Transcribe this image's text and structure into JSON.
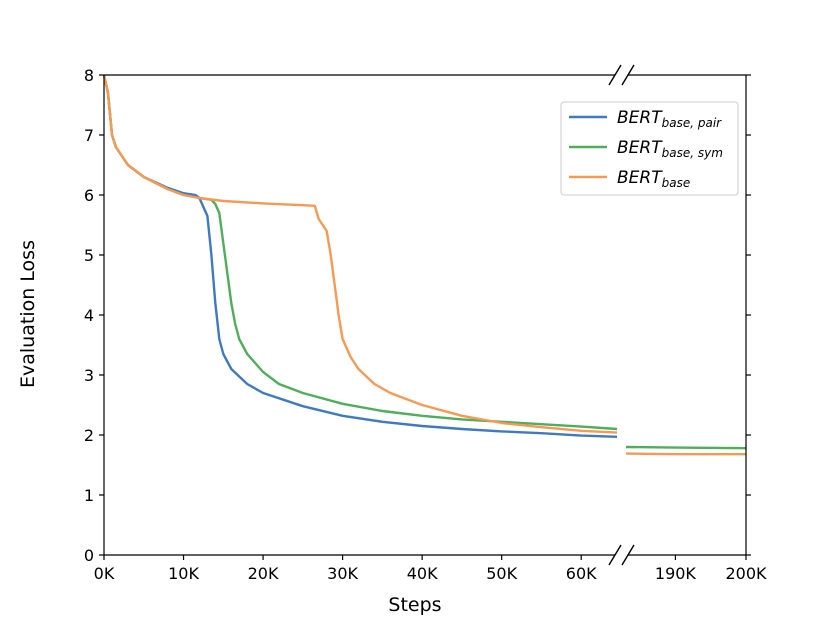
{
  "chart_data": {
    "type": "line",
    "title": "",
    "xlabel": "Steps",
    "ylabel": "Evaluation Loss",
    "ylim": [
      0,
      8
    ],
    "yticks": [
      "0",
      "1",
      "2",
      "3",
      "4",
      "5",
      "6",
      "7",
      "8"
    ],
    "x_axis_broken": true,
    "x_segments": [
      {
        "range": [
          0,
          64500
        ],
        "ticks": [
          0,
          10000,
          20000,
          30000,
          40000,
          50000,
          60000
        ],
        "tick_labels": [
          "0K",
          "10K",
          "20K",
          "30K",
          "40K",
          "50K",
          "60K"
        ]
      },
      {
        "range": [
          183000,
          200000
        ],
        "ticks": [
          190000,
          200000
        ],
        "tick_labels": [
          "190K",
          "200K"
        ]
      }
    ],
    "legend_position": "upper-right",
    "series": [
      {
        "name": "BERT",
        "subscript": "base, pair",
        "color": "#3f7abf",
        "points": [
          [
            0,
            8
          ],
          [
            500,
            7.7
          ],
          [
            1000,
            7.0
          ],
          [
            1500,
            6.8
          ],
          [
            3000,
            6.5
          ],
          [
            5000,
            6.3
          ],
          [
            8000,
            6.12
          ],
          [
            10000,
            6.03
          ],
          [
            11500,
            6.0
          ],
          [
            12000,
            5.95
          ],
          [
            12500,
            5.8
          ],
          [
            13000,
            5.65
          ],
          [
            13500,
            5.0
          ],
          [
            14000,
            4.2
          ],
          [
            14500,
            3.6
          ],
          [
            15000,
            3.35
          ],
          [
            16000,
            3.1
          ],
          [
            18000,
            2.85
          ],
          [
            20000,
            2.7
          ],
          [
            25000,
            2.48
          ],
          [
            30000,
            2.32
          ],
          [
            35000,
            2.22
          ],
          [
            40000,
            2.15
          ],
          [
            45000,
            2.1
          ],
          [
            50000,
            2.06
          ],
          [
            55000,
            2.03
          ],
          [
            60000,
            1.99
          ],
          [
            64500,
            1.97
          ]
        ],
        "tail_points": [],
        "tail_label_value": null
      },
      {
        "name": "BERT",
        "subscript": "base, sym",
        "color": "#4fad5b",
        "points": [
          [
            0,
            8
          ],
          [
            500,
            7.7
          ],
          [
            1000,
            7.0
          ],
          [
            1500,
            6.8
          ],
          [
            3000,
            6.5
          ],
          [
            5000,
            6.3
          ],
          [
            8000,
            6.1
          ],
          [
            10000,
            6.0
          ],
          [
            12000,
            5.95
          ],
          [
            13500,
            5.92
          ],
          [
            14000,
            5.85
          ],
          [
            14500,
            5.7
          ],
          [
            15000,
            5.2
          ],
          [
            15500,
            4.7
          ],
          [
            16000,
            4.2
          ],
          [
            16500,
            3.85
          ],
          [
            17000,
            3.6
          ],
          [
            18000,
            3.35
          ],
          [
            20000,
            3.05
          ],
          [
            22000,
            2.85
          ],
          [
            25000,
            2.7
          ],
          [
            30000,
            2.52
          ],
          [
            35000,
            2.4
          ],
          [
            40000,
            2.32
          ],
          [
            45000,
            2.26
          ],
          [
            50000,
            2.22
          ],
          [
            55000,
            2.18
          ],
          [
            60000,
            2.14
          ],
          [
            64500,
            2.1
          ]
        ],
        "tail_points": [
          [
            183000,
            1.8
          ],
          [
            190000,
            1.79
          ],
          [
            200000,
            1.78
          ]
        ]
      },
      {
        "name": "BERT",
        "subscript": "base",
        "color": "#f59a55",
        "points": [
          [
            0,
            8
          ],
          [
            500,
            7.7
          ],
          [
            1000,
            7.0
          ],
          [
            1500,
            6.8
          ],
          [
            3000,
            6.5
          ],
          [
            5000,
            6.3
          ],
          [
            8000,
            6.1
          ],
          [
            10000,
            6.0
          ],
          [
            12000,
            5.95
          ],
          [
            15000,
            5.9
          ],
          [
            20000,
            5.86
          ],
          [
            25000,
            5.83
          ],
          [
            26500,
            5.82
          ],
          [
            27000,
            5.6
          ],
          [
            28000,
            5.4
          ],
          [
            28500,
            5.0
          ],
          [
            29000,
            4.5
          ],
          [
            29500,
            4.0
          ],
          [
            30000,
            3.6
          ],
          [
            31000,
            3.3
          ],
          [
            32000,
            3.1
          ],
          [
            34000,
            2.85
          ],
          [
            36000,
            2.7
          ],
          [
            40000,
            2.5
          ],
          [
            45000,
            2.32
          ],
          [
            50000,
            2.2
          ],
          [
            55000,
            2.13
          ],
          [
            60000,
            2.07
          ],
          [
            64500,
            2.04
          ]
        ],
        "tail_points": [
          [
            183000,
            1.69
          ],
          [
            190000,
            1.68
          ],
          [
            200000,
            1.68
          ]
        ]
      }
    ]
  }
}
